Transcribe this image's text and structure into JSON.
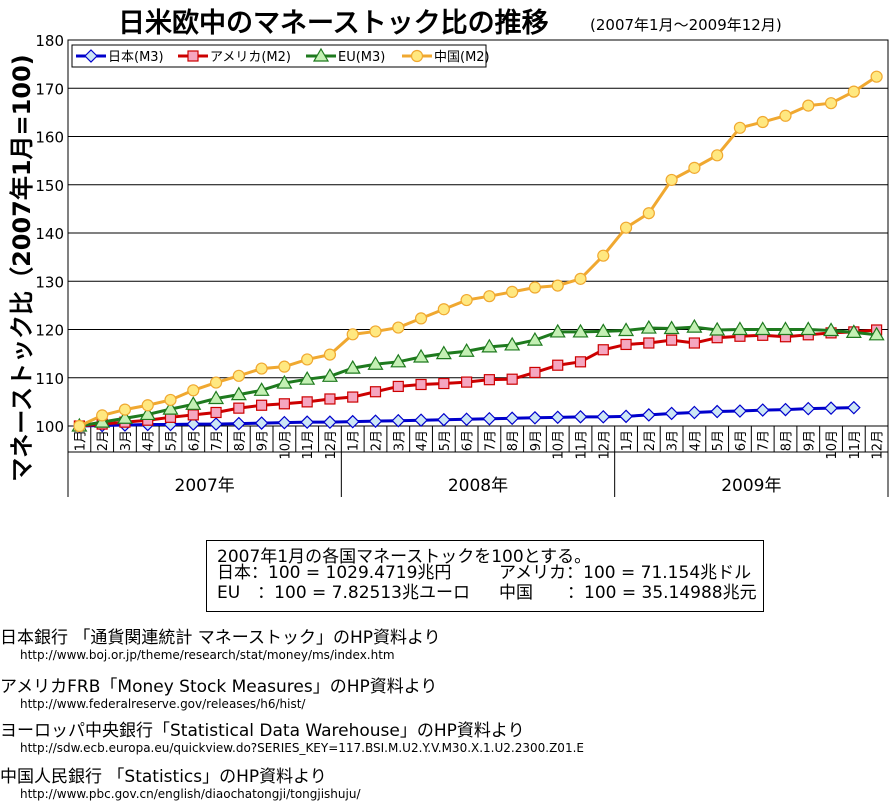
{
  "chart_data": {
    "type": "line",
    "title": "日米欧中のマネーストック比の推移",
    "subtitle": "(2007年1月～2009年12月)",
    "ylabel": "マネーストック比（2007年1月=100)",
    "ylim": [
      100,
      180
    ],
    "yticks": [
      100,
      110,
      120,
      130,
      140,
      150,
      160,
      170,
      180
    ],
    "grid": true,
    "legend_position": "top-left",
    "categories": [
      "1月",
      "2月",
      "3月",
      "4月",
      "5月",
      "6月",
      "7月",
      "8月",
      "9月",
      "10月",
      "11月",
      "12月",
      "1月",
      "2月",
      "3月",
      "4月",
      "5月",
      "6月",
      "7月",
      "8月",
      "9月",
      "10月",
      "11月",
      "12月",
      "1月",
      "2月",
      "3月",
      "4月",
      "5月",
      "6月",
      "7月",
      "8月",
      "9月",
      "10月",
      "11月",
      "12月"
    ],
    "year_labels": [
      "2007年",
      "2008年",
      "2009年"
    ],
    "series": [
      {
        "name": "日本(M3)",
        "color": "#0000cc",
        "marker": "diamond",
        "marker_fill": "#cce6f5",
        "values": [
          100.0,
          100.1,
          100.2,
          100.3,
          100.3,
          100.4,
          100.4,
          100.5,
          100.6,
          100.7,
          100.8,
          100.8,
          100.9,
          101.0,
          101.1,
          101.2,
          101.3,
          101.4,
          101.5,
          101.6,
          101.7,
          101.8,
          101.9,
          101.9,
          102.0,
          102.3,
          102.6,
          102.8,
          103.0,
          103.1,
          103.3,
          103.4,
          103.6,
          103.7,
          103.8,
          null
        ]
      },
      {
        "name": "アメリカ(M2)",
        "color": "#cc0000",
        "marker": "square",
        "marker_fill": "#f5a6c0",
        "values": [
          100.0,
          100.4,
          100.8,
          101.2,
          101.8,
          102.3,
          102.8,
          103.7,
          104.3,
          104.6,
          105.0,
          105.6,
          106.0,
          107.1,
          108.2,
          108.6,
          108.8,
          109.1,
          109.6,
          109.7,
          111.1,
          112.6,
          113.3,
          115.8,
          116.9,
          117.2,
          117.8,
          117.2,
          118.3,
          118.6,
          118.8,
          118.5,
          118.9,
          119.3,
          119.5,
          119.9
        ]
      },
      {
        "name": "EU(M3)",
        "color": "#1e7a1e",
        "marker": "triangle",
        "marker_fill": "#c4f0b4",
        "values": [
          100.0,
          100.8,
          101.6,
          102.4,
          103.5,
          104.5,
          105.7,
          106.5,
          107.4,
          108.9,
          109.7,
          110.3,
          112.0,
          112.8,
          113.3,
          114.3,
          115.0,
          115.5,
          116.4,
          116.8,
          117.8,
          119.5,
          119.5,
          119.6,
          119.8,
          120.3,
          120.2,
          120.5,
          119.9,
          120.0,
          120.0,
          120.0,
          120.0,
          119.8,
          119.4,
          118.9
        ]
      },
      {
        "name": "中国(M2)",
        "color": "#f0a830",
        "marker": "circle",
        "marker_fill": "#ffe880",
        "values": [
          100.0,
          102.2,
          103.4,
          104.3,
          105.4,
          107.4,
          109.0,
          110.4,
          111.9,
          112.3,
          113.8,
          114.8,
          119.0,
          119.6,
          120.4,
          122.3,
          124.2,
          126.1,
          126.9,
          127.8,
          128.7,
          129.1,
          130.5,
          135.3,
          141.1,
          144.1,
          151.0,
          153.5,
          156.1,
          161.8,
          163.0,
          164.3,
          166.4,
          166.9,
          169.3,
          172.4
        ]
      }
    ]
  },
  "note": {
    "line1": "2007年1月の各国マネーストックを100とする。",
    "japan": "日本：100 = 1029.4719兆円",
    "usa": "アメリカ：100 = 71.154兆ドル",
    "eu": "EU　：100 = 7.82513兆ユーロ",
    "china": "中国　　：100 = 35.14988兆元"
  },
  "sources": [
    {
      "title": "日本銀行 「通貨関連統計 マネーストック」のHP資料より",
      "url": "http://www.boj.or.jp/theme/research/stat/money/ms/index.htm"
    },
    {
      "title": "アメリカFRB「Money Stock Measures」のHP資料より",
      "url": "http://www.federalreserve.gov/releases/h6/hist/"
    },
    {
      "title": "ヨーロッパ中央銀行「Statistical Data Warehouse」のHP資料より",
      "url": "http://sdw.ecb.europa.eu/quickview.do?SERIES_KEY=117.BSI.M.U2.Y.V.M30.X.1.U2.2300.Z01.E"
    },
    {
      "title": "中国人民銀行 「Statistics」のHP資料より",
      "url": "http://www.pbc.gov.cn/english/diaochatongji/tongjishuju/"
    }
  ]
}
